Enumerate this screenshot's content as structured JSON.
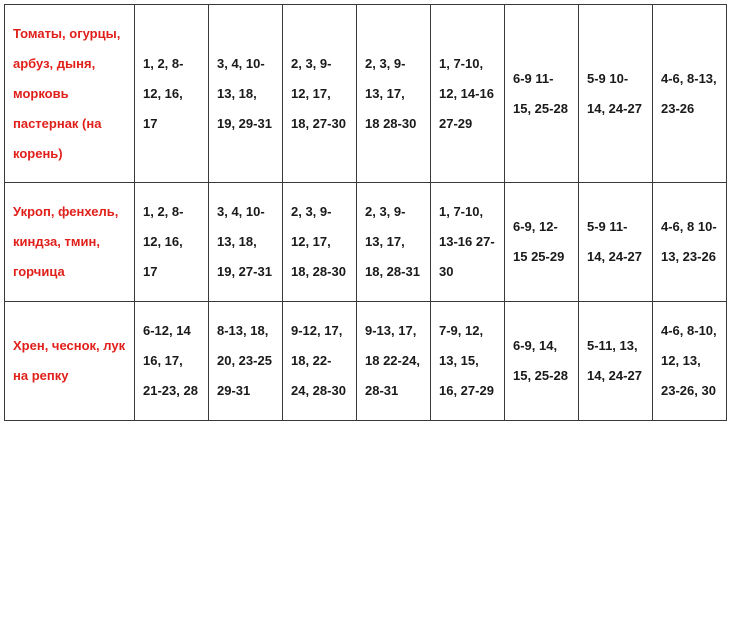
{
  "rows": [
    {
      "label": "Томаты, огурцы, арбуз, дыня, морковь пастернак (на корень)",
      "cells": [
        "1, 2, 8-12, 16, 17",
        "3, 4, 10-13, 18, 19, 29-31",
        "2, 3, 9-12, 17, 18, 27-30",
        "2, 3, 9-13, 17, 18 28-30",
        "1, 7-10, 12, 14-16 27-29",
        "6-9 11-15, 25-28",
        "5-9 10-14, 24-27",
        "4-6, 8-13, 23-26"
      ]
    },
    {
      "label": "Укроп, фенхель, киндза, тмин, горчица",
      "cells": [
        "1, 2, 8-12, 16, 17",
        "3, 4, 10-13, 18, 19, 27-31",
        "2, 3, 9-12, 17, 18, 28-30",
        "2, 3, 9-13, 17, 18, 28-31",
        "1, 7-10, 13-16 27-30",
        "6-9, 12-15 25-29",
        "5-9 11-14, 24-27",
        "4-6, 8 10-13, 23-26"
      ]
    },
    {
      "label": "Хрен, чеснок, лук на репку",
      "cells": [
        "6-12, 14 16, 17, 21-23, 28",
        "8-13, 18, 20, 23-25 29-31",
        "9-12, 17, 18, 22-24, 28-30",
        "9-13, 17, 18 22-24, 28-31",
        "7-9, 12, 13, 15, 16, 27-29",
        "6-9, 14, 15, 25-28",
        "5-11, 13, 14, 24-27",
        "4-6, 8-10, 12, 13, 23-26, 30"
      ]
    }
  ]
}
